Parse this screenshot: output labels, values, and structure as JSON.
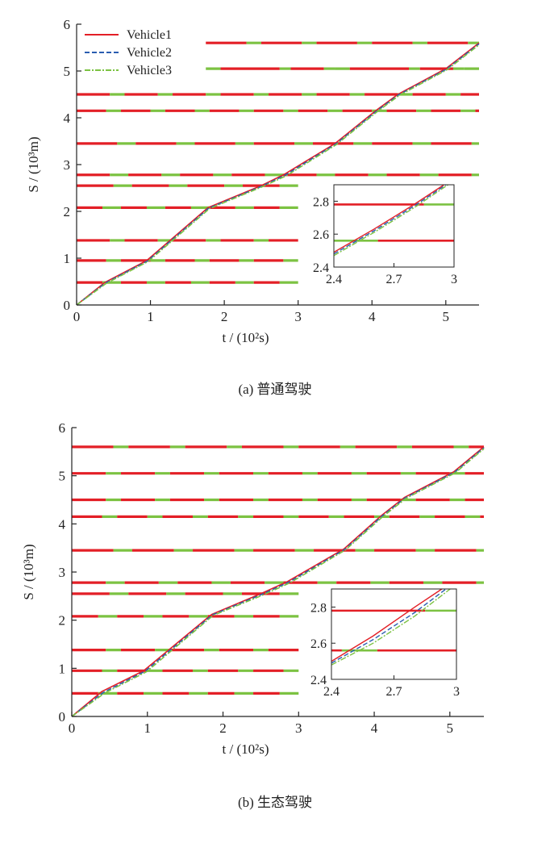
{
  "figure": {
    "panels": [
      {
        "caption": "(a)  普通驾驶"
      },
      {
        "caption": "(b)  生态驾驶"
      }
    ]
  },
  "colors": {
    "red": "#e31f26",
    "green": "#7cc242",
    "blue": "#2a5db0",
    "axis": "#222222"
  },
  "chart_data": [
    {
      "type": "line",
      "caption": "(a)  普通驾驶",
      "title": "",
      "xlabel": "t / (10²s)",
      "ylabel": "S / (10³m)",
      "xlim": [
        0,
        5.45
      ],
      "ylim": [
        0,
        6
      ],
      "xticks": [
        0,
        1,
        2,
        3,
        4,
        5
      ],
      "yticks": [
        0,
        1,
        2,
        3,
        4,
        5,
        6
      ],
      "legend": {
        "position": "top-left"
      },
      "series": [
        {
          "name": "Vehicle1",
          "color": "#e31f26",
          "dash": "solid",
          "x": [
            0,
            0.38,
            0.95,
            1.78,
            2.5,
            2.8,
            3.5,
            4.05,
            4.35,
            5.0,
            5.45
          ],
          "y": [
            0,
            0.48,
            0.95,
            2.08,
            2.55,
            2.78,
            3.45,
            4.15,
            4.5,
            5.05,
            5.6
          ]
        },
        {
          "name": "Vehicle2",
          "color": "#2a5db0",
          "dash": "dashed",
          "x": [
            0,
            0.39,
            0.96,
            1.79,
            2.51,
            2.82,
            3.51,
            4.06,
            4.36,
            5.01,
            5.45
          ],
          "y": [
            0,
            0.47,
            0.94,
            2.07,
            2.54,
            2.77,
            3.44,
            4.14,
            4.49,
            5.04,
            5.58
          ]
        },
        {
          "name": "Vehicle3",
          "color": "#7cc242",
          "dash": "dashdot",
          "x": [
            0,
            0.4,
            0.97,
            1.8,
            2.52,
            2.84,
            3.52,
            4.07,
            4.37,
            5.02,
            5.45
          ],
          "y": [
            0,
            0.46,
            0.93,
            2.06,
            2.53,
            2.76,
            3.43,
            4.13,
            4.48,
            5.03,
            5.56
          ]
        }
      ],
      "signals": [
        {
          "y": 0.48,
          "x_start": 0.0,
          "x_end": 3.0,
          "pattern": [
            [
              "r",
              0.35
            ],
            [
              "g",
              0.25
            ]
          ]
        },
        {
          "y": 0.95,
          "x_start": 0.0,
          "x_end": 3.0,
          "pattern": [
            [
              "r",
              0.4
            ],
            [
              "g",
              0.2
            ]
          ]
        },
        {
          "y": 1.38,
          "x_start": 0.0,
          "x_end": 3.0,
          "pattern": [
            [
              "r",
              0.45
            ],
            [
              "g",
              0.2
            ]
          ]
        },
        {
          "y": 2.08,
          "x_start": 0.0,
          "x_end": 3.0,
          "pattern": [
            [
              "r",
              0.35
            ],
            [
              "g",
              0.25
            ]
          ]
        },
        {
          "y": 2.55,
          "x_start": 0.0,
          "x_end": 3.0,
          "pattern": [
            [
              "r",
              0.5
            ],
            [
              "g",
              0.25
            ]
          ]
        },
        {
          "y": 2.78,
          "x_start": 0.0,
          "x_end": 5.45,
          "pattern": [
            [
              "r",
              0.45
            ],
            [
              "g",
              0.25
            ]
          ]
        },
        {
          "y": 3.45,
          "x_start": 0.0,
          "x_end": 5.45,
          "pattern": [
            [
              "r",
              0.55
            ],
            [
              "g",
              0.25
            ]
          ]
        },
        {
          "y": 4.15,
          "x_start": 0.0,
          "x_end": 5.45,
          "pattern": [
            [
              "r",
              0.4
            ],
            [
              "g",
              0.2
            ]
          ]
        },
        {
          "y": 4.5,
          "x_start": 0.0,
          "x_end": 5.45,
          "pattern": [
            [
              "r",
              0.45
            ],
            [
              "g",
              0.2
            ]
          ]
        },
        {
          "y": 5.05,
          "x_start": 1.75,
          "x_end": 5.45,
          "pattern": [
            [
              "g",
              0.2
            ],
            [
              "r",
              0.8
            ],
            [
              "g",
              0.15
            ],
            [
              "r",
              0.45
            ],
            [
              "g",
              0.15
            ]
          ]
        },
        {
          "y": 5.6,
          "x_start": 1.75,
          "x_end": 5.45,
          "pattern": [
            [
              "r",
              0.55
            ],
            [
              "g",
              0.2
            ]
          ]
        }
      ],
      "inset": {
        "xlim": [
          2.4,
          3.0
        ],
        "ylim": [
          2.4,
          2.9
        ],
        "xticks": [
          2.4,
          2.7,
          3
        ],
        "yticks": [
          2.4,
          2.6,
          2.8
        ],
        "signals": [
          {
            "y": 2.78,
            "segments": [
              [
                "r",
                2.4,
                2.85
              ],
              [
                "g",
                2.85,
                3.0
              ]
            ]
          },
          {
            "y": 2.56,
            "segments": [
              [
                "g",
                2.4,
                2.62
              ],
              [
                "r",
                2.62,
                3.0
              ]
            ]
          }
        ],
        "series": [
          {
            "name": "Vehicle1",
            "x": [
              2.4,
              2.6,
              2.8,
              2.95
            ],
            "y": [
              2.49,
              2.63,
              2.78,
              2.9
            ]
          },
          {
            "name": "Vehicle2",
            "x": [
              2.4,
              2.6,
              2.8,
              2.96
            ],
            "y": [
              2.48,
              2.62,
              2.77,
              2.9
            ]
          },
          {
            "name": "Vehicle3",
            "x": [
              2.4,
              2.6,
              2.8,
              2.97
            ],
            "y": [
              2.47,
              2.61,
              2.76,
              2.9
            ]
          }
        ]
      }
    },
    {
      "type": "line",
      "caption": "(b)  生态驾驶",
      "title": "",
      "xlabel": "t / (10²s)",
      "ylabel": "S / (10³m)",
      "xlim": [
        0,
        5.45
      ],
      "ylim": [
        0,
        6
      ],
      "xticks": [
        0,
        1,
        2,
        3,
        4,
        5
      ],
      "yticks": [
        0,
        1,
        2,
        3,
        4,
        5,
        6
      ],
      "legend": {
        "position": "none"
      },
      "series": [
        {
          "name": "Vehicle1",
          "color": "#e31f26",
          "dash": "solid",
          "x": [
            0,
            0.4,
            0.95,
            1.85,
            2.5,
            2.85,
            3.6,
            4.1,
            4.4,
            5.05,
            5.45
          ],
          "y": [
            0,
            0.52,
            0.95,
            2.12,
            2.55,
            2.8,
            3.48,
            4.18,
            4.55,
            5.08,
            5.6
          ]
        },
        {
          "name": "Vehicle2",
          "color": "#2a5db0",
          "dash": "dashed",
          "x": [
            0,
            0.42,
            0.97,
            1.86,
            2.52,
            2.87,
            3.61,
            4.11,
            4.41,
            5.06,
            5.45
          ],
          "y": [
            0,
            0.5,
            0.94,
            2.11,
            2.54,
            2.79,
            3.47,
            4.17,
            4.54,
            5.07,
            5.58
          ]
        },
        {
          "name": "Vehicle3",
          "color": "#7cc242",
          "dash": "dashdot",
          "x": [
            0,
            0.44,
            0.99,
            1.87,
            2.54,
            2.89,
            3.62,
            4.12,
            4.42,
            5.07,
            5.45
          ],
          "y": [
            0,
            0.49,
            0.93,
            2.1,
            2.53,
            2.78,
            3.46,
            4.16,
            4.53,
            5.06,
            5.56
          ]
        }
      ],
      "signals": [
        {
          "y": 0.48,
          "x_start": 0.0,
          "x_end": 3.0,
          "pattern": [
            [
              "r",
              0.35
            ],
            [
              "g",
              0.25
            ]
          ]
        },
        {
          "y": 0.95,
          "x_start": 0.0,
          "x_end": 3.0,
          "pattern": [
            [
              "r",
              0.4
            ],
            [
              "g",
              0.2
            ]
          ]
        },
        {
          "y": 1.38,
          "x_start": 0.0,
          "x_end": 3.0,
          "pattern": [
            [
              "r",
              0.45
            ],
            [
              "g",
              0.2
            ]
          ]
        },
        {
          "y": 2.08,
          "x_start": 0.0,
          "x_end": 3.0,
          "pattern": [
            [
              "r",
              0.35
            ],
            [
              "g",
              0.25
            ]
          ]
        },
        {
          "y": 2.55,
          "x_start": 0.0,
          "x_end": 3.0,
          "pattern": [
            [
              "r",
              0.5
            ],
            [
              "g",
              0.25
            ]
          ]
        },
        {
          "y": 2.78,
          "x_start": 0.0,
          "x_end": 5.45,
          "pattern": [
            [
              "r",
              0.45
            ],
            [
              "g",
              0.25
            ]
          ]
        },
        {
          "y": 3.45,
          "x_start": 0.0,
          "x_end": 5.45,
          "pattern": [
            [
              "r",
              0.55
            ],
            [
              "g",
              0.25
            ]
          ]
        },
        {
          "y": 4.15,
          "x_start": 0.0,
          "x_end": 5.45,
          "pattern": [
            [
              "r",
              0.4
            ],
            [
              "g",
              0.2
            ]
          ]
        },
        {
          "y": 4.5,
          "x_start": 0.0,
          "x_end": 5.45,
          "pattern": [
            [
              "r",
              0.45
            ],
            [
              "g",
              0.2
            ]
          ]
        },
        {
          "y": 5.05,
          "x_start": 0.0,
          "x_end": 5.45,
          "pattern": [
            [
              "r",
              0.45
            ],
            [
              "g",
              0.2
            ]
          ]
        },
        {
          "y": 5.6,
          "x_start": 0.0,
          "x_end": 5.45,
          "pattern": [
            [
              "r",
              0.55
            ],
            [
              "g",
              0.2
            ]
          ]
        }
      ],
      "inset": {
        "xlim": [
          2.4,
          3.0
        ],
        "ylim": [
          2.4,
          2.9
        ],
        "xticks": [
          2.4,
          2.7,
          3
        ],
        "yticks": [
          2.4,
          2.6,
          2.8
        ],
        "signals": [
          {
            "y": 2.78,
            "segments": [
              [
                "r",
                2.4,
                2.85
              ],
              [
                "g",
                2.85,
                3.0
              ]
            ]
          },
          {
            "y": 2.56,
            "segments": [
              [
                "r",
                2.4,
                2.45
              ],
              [
                "g",
                2.45,
                2.62
              ],
              [
                "r",
                2.62,
                3.0
              ]
            ]
          }
        ],
        "series": [
          {
            "name": "Vehicle1",
            "x": [
              2.4,
              2.6,
              2.8,
              2.93
            ],
            "y": [
              2.5,
              2.64,
              2.8,
              2.9
            ]
          },
          {
            "name": "Vehicle2",
            "x": [
              2.4,
              2.6,
              2.8,
              2.95
            ],
            "y": [
              2.49,
              2.62,
              2.77,
              2.9
            ]
          },
          {
            "name": "Vehicle3",
            "x": [
              2.4,
              2.6,
              2.8,
              2.97
            ],
            "y": [
              2.48,
              2.6,
              2.75,
              2.9
            ]
          }
        ]
      }
    }
  ]
}
